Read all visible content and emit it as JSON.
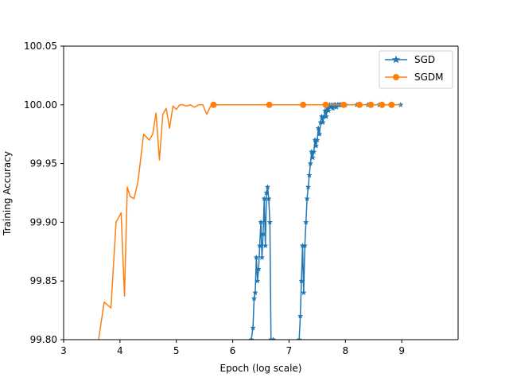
{
  "chart_data": {
    "type": "line",
    "title": "",
    "xlabel": "Epoch (log scale)",
    "ylabel": "Training Accuracy",
    "xlim": [
      3,
      10
    ],
    "ylim": [
      99.8,
      100.05
    ],
    "xticks": [
      3,
      4,
      5,
      6,
      7,
      8,
      9
    ],
    "xtick_labels": [
      "3",
      "4",
      "5",
      "6",
      "7",
      "8",
      "9"
    ],
    "yticks": [
      99.8,
      99.85,
      99.9,
      99.95,
      100.0,
      100.05
    ],
    "ytick_labels": [
      "99.80",
      "99.85",
      "99.90",
      "99.95",
      "100.00",
      "100.05"
    ],
    "grid": false,
    "legend_position": "upper right",
    "series": [
      {
        "name": "SGD",
        "color": "#1f77b4",
        "marker": "star",
        "x": [
          6.33,
          6.36,
          6.38,
          6.4,
          6.42,
          6.44,
          6.46,
          6.48,
          6.5,
          6.52,
          6.54,
          6.56,
          6.58,
          6.6,
          6.62,
          6.64,
          6.66,
          6.68,
          6.7,
          6.72,
          6.74,
          6.745,
          7.18,
          7.2,
          7.22,
          7.24,
          7.26,
          7.28,
          7.3,
          7.32,
          7.34,
          7.36,
          7.38,
          7.4,
          7.42,
          7.44,
          7.46,
          7.48,
          7.5,
          7.52,
          7.54,
          7.56,
          7.58,
          7.6,
          7.62,
          7.64,
          7.66,
          7.68,
          7.7,
          7.72,
          7.74,
          7.76,
          7.78,
          7.8,
          7.82,
          7.84,
          7.86,
          7.88,
          7.9,
          7.92,
          7.94,
          7.96,
          7.98,
          8.0,
          8.2,
          8.4,
          8.6,
          8.8,
          8.98
        ],
        "y": [
          99.8,
          99.81,
          99.835,
          99.84,
          99.87,
          99.85,
          99.86,
          99.88,
          99.9,
          99.87,
          99.89,
          99.92,
          99.88,
          99.925,
          99.93,
          99.92,
          99.9,
          99.8,
          99.78,
          99.8,
          99.78,
          99.77,
          99.8,
          99.82,
          99.85,
          99.88,
          99.84,
          99.88,
          99.9,
          99.92,
          99.93,
          99.94,
          99.95,
          99.96,
          99.955,
          99.96,
          99.97,
          99.965,
          99.97,
          99.98,
          99.975,
          99.985,
          99.99,
          99.985,
          99.99,
          99.995,
          99.99,
          99.997,
          99.995,
          100.0,
          99.998,
          100.0,
          99.997,
          100.0,
          100.0,
          99.998,
          100.0,
          100.0,
          100.0,
          100.0,
          100.0,
          100.0,
          100.0,
          100.0,
          100.0,
          100.0,
          100.0,
          100.0,
          100.0
        ]
      },
      {
        "name": "SGDM",
        "color": "#ff7f0e",
        "marker": "circle",
        "x": [
          3.62,
          3.72,
          3.84,
          3.93,
          4.02,
          4.08,
          4.13,
          4.18,
          4.25,
          4.32,
          4.42,
          4.52,
          4.58,
          4.64,
          4.7,
          4.76,
          4.82,
          4.88,
          4.94,
          5.0,
          5.06,
          5.12,
          5.18,
          5.25,
          5.32,
          5.4,
          5.47,
          5.54,
          5.62,
          5.66,
          6.0,
          6.65,
          7.0,
          7.25,
          7.5,
          7.65,
          7.8,
          7.97,
          8.1,
          8.25,
          8.45,
          8.65,
          8.82,
          8.98
        ],
        "y": [
          99.8,
          99.832,
          99.827,
          99.9,
          99.908,
          99.837,
          99.93,
          99.922,
          99.92,
          99.935,
          99.975,
          99.97,
          99.975,
          99.993,
          99.953,
          99.992,
          99.997,
          99.98,
          99.999,
          99.996,
          100.0,
          100.0,
          99.999,
          100.0,
          99.998,
          100.0,
          100.0,
          99.992,
          100.0,
          100.0,
          100.0,
          100.0,
          100.0,
          100.0,
          100.0,
          100.0,
          100.0,
          100.0,
          100.0,
          100.0,
          100.0,
          100.0,
          100.0,
          100.0
        ],
        "marker_x": [
          5.66,
          6.65,
          7.25,
          7.65,
          7.97,
          8.25,
          8.45,
          8.65,
          8.82
        ]
      }
    ]
  }
}
